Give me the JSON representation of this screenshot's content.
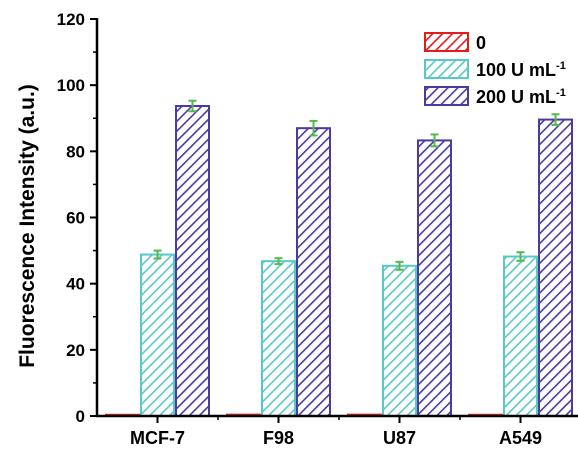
{
  "chart_data": {
    "type": "bar",
    "title": "",
    "xlabel": "",
    "ylabel": "Fluorescence Intensity (a.u.)",
    "categories": [
      "MCF-7",
      "F98",
      "U87",
      "A549"
    ],
    "ylim": [
      0,
      120
    ],
    "yticks": [
      "0",
      "20",
      "40",
      "60",
      "80",
      "100",
      "120"
    ],
    "grid": false,
    "legend_position": "top-right",
    "pattern": "diagonal-hatch",
    "series": [
      {
        "name": "0",
        "name_parts": [
          "0",
          ""
        ],
        "color": "#e41a1c",
        "fill": "#ffffff",
        "values": [
          0.3,
          0.4,
          0.4,
          0.3
        ],
        "errors": [
          0.1,
          0.1,
          0.1,
          0.1
        ]
      },
      {
        "name": "100 U mL-1",
        "name_parts": [
          "100 U mL",
          "-1"
        ],
        "color": "#58c9c9",
        "fill": "#ffffff",
        "values": [
          48.8,
          46.8,
          45.4,
          48.2
        ],
        "errors": [
          1.2,
          0.9,
          1.2,
          1.3
        ]
      },
      {
        "name": "200 U mL-1",
        "name_parts": [
          "200 U mL",
          "-1"
        ],
        "color": "#4b3aa0",
        "fill": "#ffffff",
        "values": [
          93.7,
          87.0,
          83.3,
          89.6
        ],
        "errors": [
          1.6,
          2.2,
          1.8,
          1.6
        ]
      }
    ],
    "error_bar_color": "#55b848"
  }
}
